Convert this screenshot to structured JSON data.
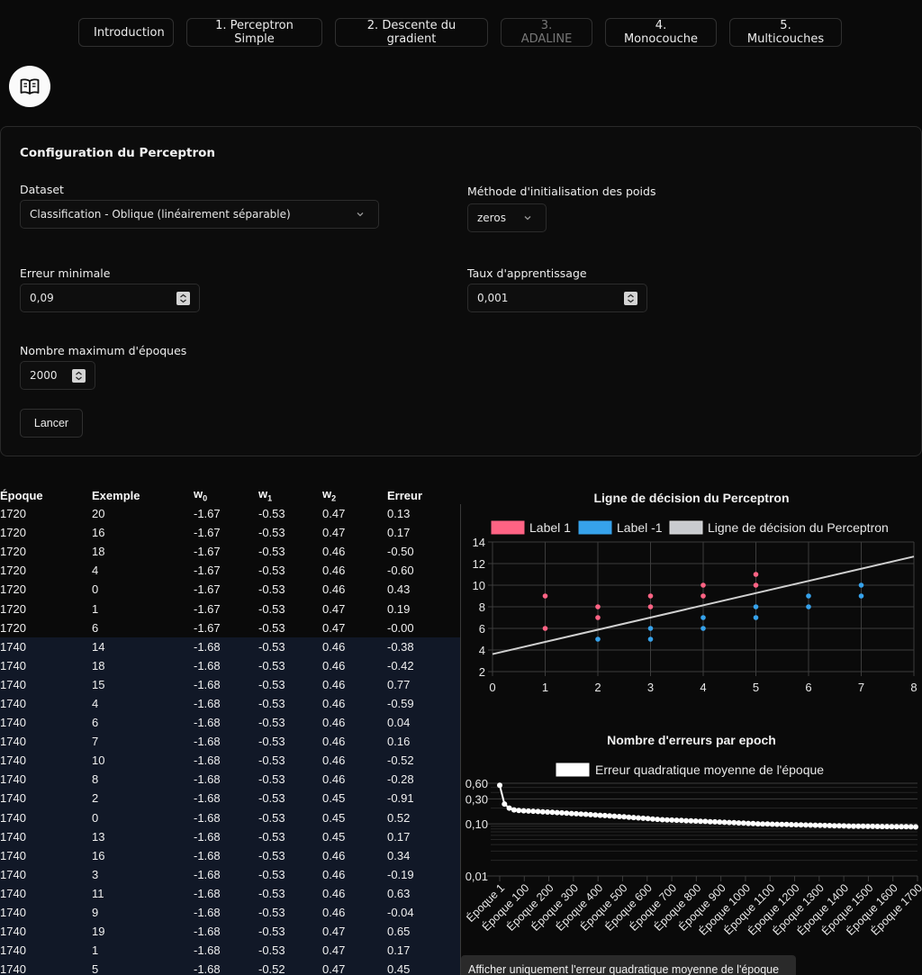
{
  "nav": [
    {
      "label": "Introduction",
      "active": false
    },
    {
      "label": "1. Perceptron Simple",
      "active": false
    },
    {
      "label": "2. Descente du gradient",
      "active": false
    },
    {
      "label": "3. ADALINE",
      "active": true
    },
    {
      "label": "4. Monocouche",
      "active": false
    },
    {
      "label": "5. Multicouches",
      "active": false
    }
  ],
  "config": {
    "title": "Configuration du Perceptron",
    "dataset_label": "Dataset",
    "dataset_value": "Classification - Oblique (linéairement séparable)",
    "init_label": "Méthode d'initialisation des poids",
    "init_value": "zeros",
    "min_error_label": "Erreur minimale",
    "min_error_value": "0,09",
    "lr_label": "Taux d'apprentissage",
    "lr_value": "0,001",
    "max_epochs_label": "Nombre maximum d'époques",
    "max_epochs_value": "2000",
    "launch_label": "Lancer"
  },
  "table": {
    "headers": [
      "Époque",
      "Exemple",
      "w",
      "w",
      "w",
      "Erreur"
    ],
    "header_subs": [
      "",
      "",
      "0",
      "1",
      "2",
      ""
    ],
    "rows": [
      [
        "1720",
        "20",
        "-1.67",
        "-0.53",
        "0.47",
        "0.13"
      ],
      [
        "1720",
        "16",
        "-1.67",
        "-0.53",
        "0.47",
        "0.17"
      ],
      [
        "1720",
        "18",
        "-1.67",
        "-0.53",
        "0.46",
        "-0.50"
      ],
      [
        "1720",
        "4",
        "-1.67",
        "-0.53",
        "0.46",
        "-0.60"
      ],
      [
        "1720",
        "0",
        "-1.67",
        "-0.53",
        "0.46",
        "0.43"
      ],
      [
        "1720",
        "1",
        "-1.67",
        "-0.53",
        "0.47",
        "0.19"
      ],
      [
        "1720",
        "6",
        "-1.67",
        "-0.53",
        "0.47",
        "-0.00"
      ],
      [
        "1740",
        "14",
        "-1.68",
        "-0.53",
        "0.46",
        "-0.38"
      ],
      [
        "1740",
        "18",
        "-1.68",
        "-0.53",
        "0.46",
        "-0.42"
      ],
      [
        "1740",
        "15",
        "-1.68",
        "-0.53",
        "0.46",
        "0.77"
      ],
      [
        "1740",
        "4",
        "-1.68",
        "-0.53",
        "0.46",
        "-0.59"
      ],
      [
        "1740",
        "6",
        "-1.68",
        "-0.53",
        "0.46",
        "0.04"
      ],
      [
        "1740",
        "7",
        "-1.68",
        "-0.53",
        "0.46",
        "0.16"
      ],
      [
        "1740",
        "10",
        "-1.68",
        "-0.53",
        "0.46",
        "-0.52"
      ],
      [
        "1740",
        "8",
        "-1.68",
        "-0.53",
        "0.46",
        "-0.28"
      ],
      [
        "1740",
        "2",
        "-1.68",
        "-0.53",
        "0.45",
        "-0.91"
      ],
      [
        "1740",
        "0",
        "-1.68",
        "-0.53",
        "0.45",
        "0.52"
      ],
      [
        "1740",
        "13",
        "-1.68",
        "-0.53",
        "0.45",
        "0.17"
      ],
      [
        "1740",
        "16",
        "-1.68",
        "-0.53",
        "0.46",
        "0.34"
      ],
      [
        "1740",
        "3",
        "-1.68",
        "-0.53",
        "0.46",
        "-0.19"
      ],
      [
        "1740",
        "11",
        "-1.68",
        "-0.53",
        "0.46",
        "0.63"
      ],
      [
        "1740",
        "9",
        "-1.68",
        "-0.53",
        "0.46",
        "-0.04"
      ],
      [
        "1740",
        "19",
        "-1.68",
        "-0.53",
        "0.47",
        "0.65"
      ],
      [
        "1740",
        "1",
        "-1.68",
        "-0.53",
        "0.47",
        "0.17"
      ],
      [
        "1740",
        "5",
        "-1.68",
        "-0.52",
        "0.47",
        "0.45"
      ]
    ]
  },
  "chart_data": [
    {
      "type": "scatter",
      "title": "Ligne de décision du Perceptron",
      "legend": [
        {
          "name": "Label 1",
          "color": "#ff6384"
        },
        {
          "name": "Label -1",
          "color": "#36a2eb"
        },
        {
          "name": "Ligne de décision du Perceptron",
          "color": "#c9cbcf"
        }
      ],
      "xlim": [
        0,
        8
      ],
      "ylim": [
        2,
        14
      ],
      "xticks": [
        "0",
        "1",
        "2",
        "3",
        "4",
        "5",
        "6",
        "7",
        "8"
      ],
      "yticks": [
        "2",
        "4",
        "6",
        "8",
        "10",
        "12",
        "14"
      ],
      "series": [
        {
          "name": "Label 1",
          "color": "#ff6384",
          "points": [
            [
              1,
              9
            ],
            [
              1,
              6
            ],
            [
              2,
              8
            ],
            [
              2,
              7
            ],
            [
              3,
              9
            ],
            [
              3,
              8
            ],
            [
              4,
              10
            ],
            [
              4,
              9
            ],
            [
              5,
              11
            ],
            [
              5,
              10
            ]
          ]
        },
        {
          "name": "Label -1",
          "color": "#36a2eb",
          "points": [
            [
              2,
              5
            ],
            [
              3,
              6
            ],
            [
              3,
              5
            ],
            [
              4,
              7
            ],
            [
              4,
              6
            ],
            [
              5,
              8
            ],
            [
              5,
              7
            ],
            [
              6,
              9
            ],
            [
              6,
              8
            ],
            [
              7,
              10
            ],
            [
              7,
              9
            ]
          ]
        },
        {
          "name": "Ligne de décision du Perceptron",
          "color": "#d0d0d0",
          "line": [
            [
              0,
              3.62
            ],
            [
              8,
              12.65
            ]
          ]
        }
      ],
      "legend_position": "top",
      "grid": true
    },
    {
      "type": "line",
      "title": "Nombre d'erreurs par epoch",
      "legend": [
        {
          "name": "Erreur quadratique moyenne de l'époque",
          "color": "#ffffff"
        }
      ],
      "yscale": "log",
      "yticks": [
        "0,60",
        "0,30",
        "0,10",
        "0,01"
      ],
      "ytick_values": [
        0.6,
        0.3,
        0.1,
        0.01
      ],
      "ylim": [
        0.01,
        0.6
      ],
      "xticks": [
        "Époque 1",
        "Époque 100",
        "Époque 200",
        "Époque 300",
        "Époque 400",
        "Époque 500",
        "Époque 600",
        "Époque 700",
        "Époque 800",
        "Époque 900",
        "Époque 1000",
        "Époque 1100",
        "Époque 1200",
        "Époque 1300",
        "Époque 1400",
        "Époque 1500",
        "Époque 1600",
        "Époque 1700"
      ],
      "series": [
        {
          "name": "Erreur quadratique moyenne de l'époque",
          "color": "#ffffff",
          "values": [
            0.55,
            0.24,
            0.2,
            0.185,
            0.18,
            0.178,
            0.176,
            0.174,
            0.172,
            0.17,
            0.168,
            0.166,
            0.164,
            0.162,
            0.16,
            0.158,
            0.156,
            0.154,
            0.152,
            0.15,
            0.148,
            0.146,
            0.144,
            0.142,
            0.14,
            0.138,
            0.136,
            0.134,
            0.132,
            0.13,
            0.128,
            0.126,
            0.124,
            0.122,
            0.12,
            0.119,
            0.118,
            0.117,
            0.116,
            0.115,
            0.114,
            0.113,
            0.112,
            0.111,
            0.11,
            0.109,
            0.108,
            0.107,
            0.106,
            0.105,
            0.104,
            0.103,
            0.102,
            0.101,
            0.1,
            0.0995,
            0.099,
            0.0985,
            0.098,
            0.0975,
            0.097,
            0.0965,
            0.096,
            0.0955,
            0.095,
            0.0945,
            0.094,
            0.0935,
            0.093,
            0.0925,
            0.092,
            0.0915,
            0.091,
            0.0905,
            0.09,
            0.0898,
            0.0896,
            0.0894,
            0.0892,
            0.089,
            0.0888,
            0.0886,
            0.0884,
            0.0882,
            0.088,
            0.0878,
            0.0876,
            0.0874
          ]
        }
      ],
      "legend_position": "top",
      "grid": true
    }
  ],
  "toggle_label": "Afficher uniquement l'erreur quadratique moyenne de l'époque"
}
